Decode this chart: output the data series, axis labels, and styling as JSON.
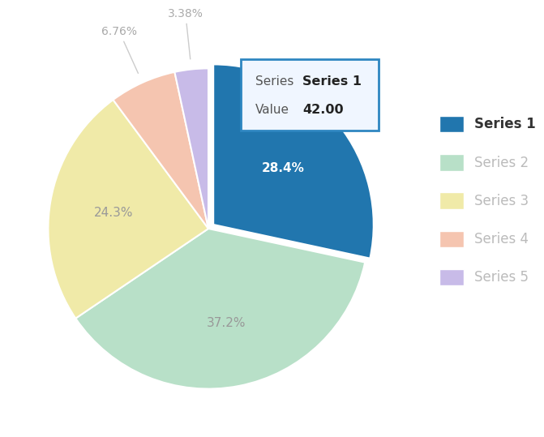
{
  "series_names": [
    "Series 1",
    "Series 2",
    "Series 3",
    "Series 4",
    "Series 5"
  ],
  "values": [
    42,
    55,
    36,
    10,
    5
  ],
  "colors": [
    "#2176AE",
    "#B8E0C8",
    "#F0EAA8",
    "#F5C5B0",
    "#C8BBE8"
  ],
  "explode": [
    0.04,
    0,
    0,
    0,
    0
  ],
  "highlight_series": "Series 1",
  "highlight_value": "42.00",
  "pct_labels_inside": [
    "28.4%",
    "37.2%",
    "24.3%"
  ],
  "pct_labels_outside": [
    "6.76%",
    "3.38%"
  ],
  "label_colors_inside": [
    "white",
    "#aaaaaa",
    "#aaaaaa"
  ],
  "tooltip_box_color": "#2E86C1",
  "tooltip_bg": "#f0f6ff",
  "background_color": "#ffffff",
  "legend_series_active_color": "#333333",
  "legend_series_inactive_color": "#bbbbbb",
  "startangle": 90
}
